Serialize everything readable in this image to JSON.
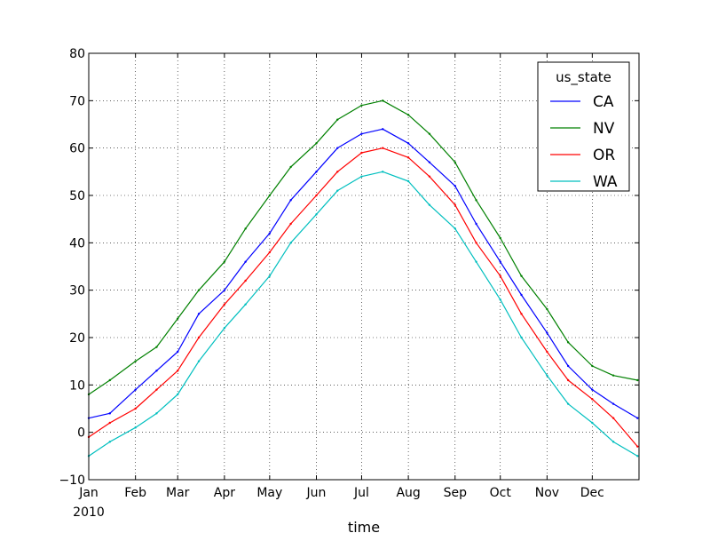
{
  "chart_data": {
    "type": "line",
    "title": "",
    "xlabel": "time",
    "ylabel": "",
    "ylim": [
      -10,
      80
    ],
    "yticks": [
      -10,
      0,
      10,
      20,
      30,
      40,
      50,
      60,
      70,
      80
    ],
    "yticklabels": [
      "−10",
      "0",
      "10",
      "20",
      "30",
      "40",
      "50",
      "60",
      "70",
      "80"
    ],
    "xlim": [
      "2010-01-01",
      "2010-12-31"
    ],
    "xticks": [
      "2010-01-01",
      "2010-02-01",
      "2010-03-01",
      "2010-04-01",
      "2010-05-01",
      "2010-06-01",
      "2010-07-01",
      "2010-08-01",
      "2010-09-01",
      "2010-10-01",
      "2010-11-01",
      "2010-12-01"
    ],
    "xticklabels": [
      "Jan",
      "Feb",
      "Mar",
      "Apr",
      "May",
      "Jun",
      "Jul",
      "Aug",
      "Sep",
      "Oct",
      "Nov",
      "Dec"
    ],
    "year_label": "2010",
    "grid": true,
    "legend_title": "us_state",
    "legend_position": "top-right",
    "x": [
      "2010-01-01",
      "2010-01-15",
      "2010-02-01",
      "2010-02-15",
      "2010-03-01",
      "2010-03-15",
      "2010-04-01",
      "2010-04-15",
      "2010-05-01",
      "2010-05-15",
      "2010-06-01",
      "2010-06-15",
      "2010-07-01",
      "2010-07-15",
      "2010-08-01",
      "2010-08-15",
      "2010-09-01",
      "2010-09-15",
      "2010-10-01",
      "2010-10-15",
      "2010-11-01",
      "2010-11-15",
      "2010-12-01",
      "2010-12-15",
      "2010-12-31"
    ],
    "series": [
      {
        "name": "CA",
        "color": "#0000ff",
        "values": [
          3,
          4,
          9,
          13,
          17,
          25,
          30,
          36,
          42,
          49,
          55,
          60,
          63,
          64,
          61,
          57,
          52,
          44,
          36,
          29,
          21,
          14,
          9,
          6,
          3
        ]
      },
      {
        "name": "NV",
        "color": "#008000",
        "values": [
          8,
          11,
          15,
          18,
          24,
          30,
          36,
          43,
          50,
          56,
          61,
          66,
          69,
          70,
          67,
          63,
          57,
          49,
          41,
          33,
          26,
          19,
          14,
          12,
          11
        ]
      },
      {
        "name": "OR",
        "color": "#ff0000",
        "values": [
          -1,
          2,
          5,
          9,
          13,
          20,
          27,
          32,
          38,
          44,
          50,
          55,
          59,
          60,
          58,
          54,
          48,
          40,
          33,
          25,
          17,
          11,
          7,
          3,
          -3
        ]
      },
      {
        "name": "WA",
        "color": "#00bfbf",
        "values": [
          -5,
          -2,
          1,
          4,
          8,
          15,
          22,
          27,
          33,
          40,
          46,
          51,
          54,
          55,
          53,
          48,
          43,
          36,
          28,
          20,
          12,
          6,
          2,
          -2,
          -5
        ]
      }
    ]
  }
}
